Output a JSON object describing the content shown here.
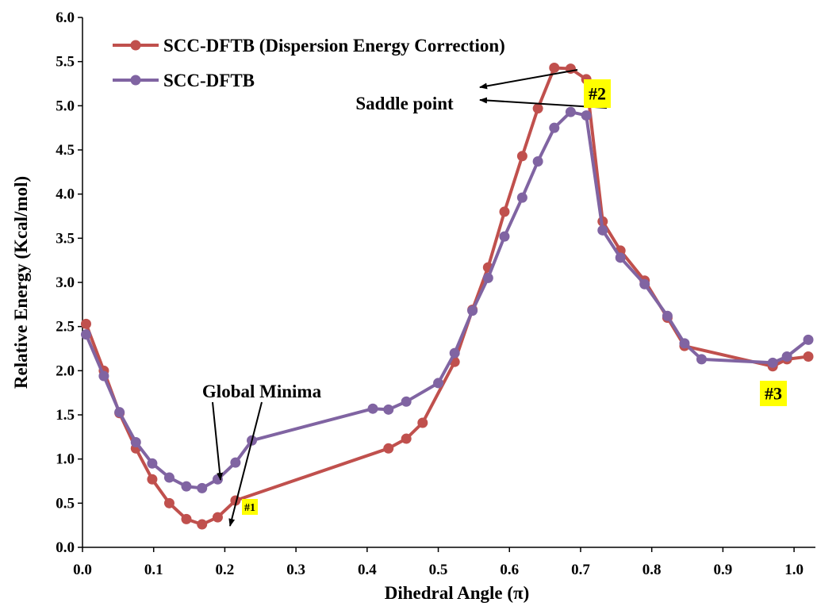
{
  "chart_data": {
    "type": "line",
    "title": "",
    "xlabel": "Dihedral Angle (π)",
    "ylabel": "Relative Energy (Kcal/mol)",
    "xlim": [
      0.0,
      1.03
    ],
    "ylim": [
      0.0,
      6.0
    ],
    "x_ticks": [
      "0.0",
      "0.1",
      "0.2",
      "0.3",
      "0.4",
      "0.5",
      "0.6",
      "0.7",
      "0.8",
      "0.9",
      "1.0"
    ],
    "y_ticks": [
      "0.0",
      "0.5",
      "1.0",
      "1.5",
      "2.0",
      "2.5",
      "3.0",
      "3.5",
      "4.0",
      "4.5",
      "5.0",
      "5.5",
      "6.0"
    ],
    "grid": false,
    "legend_position": "top-left",
    "series": [
      {
        "name": "SCC-DFTB (Dispersion Energy Correction)",
        "color": "#C0504D",
        "points": [
          [
            0.005,
            2.53
          ],
          [
            0.03,
            2.0
          ],
          [
            0.052,
            1.52
          ],
          [
            0.075,
            1.12
          ],
          [
            0.098,
            0.77
          ],
          [
            0.122,
            0.5
          ],
          [
            0.146,
            0.32
          ],
          [
            0.168,
            0.26
          ],
          [
            0.19,
            0.34
          ],
          [
            0.215,
            0.53
          ],
          [
            0.43,
            1.12
          ],
          [
            0.455,
            1.23
          ],
          [
            0.478,
            1.41
          ],
          [
            0.523,
            2.1
          ],
          [
            0.548,
            2.69
          ],
          [
            0.57,
            3.17
          ],
          [
            0.593,
            3.8
          ],
          [
            0.618,
            4.43
          ],
          [
            0.64,
            4.97
          ],
          [
            0.663,
            5.43
          ],
          [
            0.686,
            5.42
          ],
          [
            0.708,
            5.3
          ],
          [
            0.731,
            3.69
          ],
          [
            0.756,
            3.36
          ],
          [
            0.79,
            3.02
          ],
          [
            0.822,
            2.6
          ],
          [
            0.846,
            2.28
          ],
          [
            0.97,
            2.05
          ],
          [
            0.99,
            2.13
          ],
          [
            1.02,
            2.16
          ]
        ]
      },
      {
        "name": "SCC-DFTB",
        "color": "#8064A2",
        "points": [
          [
            0.005,
            2.41
          ],
          [
            0.03,
            1.94
          ],
          [
            0.052,
            1.53
          ],
          [
            0.075,
            1.19
          ],
          [
            0.098,
            0.95
          ],
          [
            0.122,
            0.79
          ],
          [
            0.146,
            0.69
          ],
          [
            0.168,
            0.67
          ],
          [
            0.19,
            0.77
          ],
          [
            0.215,
            0.96
          ],
          [
            0.238,
            1.21
          ],
          [
            0.408,
            1.57
          ],
          [
            0.43,
            1.56
          ],
          [
            0.455,
            1.65
          ],
          [
            0.5,
            1.86
          ],
          [
            0.523,
            2.2
          ],
          [
            0.548,
            2.68
          ],
          [
            0.57,
            3.05
          ],
          [
            0.593,
            3.52
          ],
          [
            0.618,
            3.96
          ],
          [
            0.64,
            4.37
          ],
          [
            0.663,
            4.75
          ],
          [
            0.686,
            4.93
          ],
          [
            0.708,
            4.89
          ],
          [
            0.731,
            3.59
          ],
          [
            0.756,
            3.28
          ],
          [
            0.79,
            2.98
          ],
          [
            0.822,
            2.62
          ],
          [
            0.846,
            2.31
          ],
          [
            0.87,
            2.13
          ],
          [
            0.97,
            2.09
          ],
          [
            0.99,
            2.16
          ],
          [
            1.02,
            2.35
          ]
        ]
      }
    ],
    "annotations": {
      "global_minima": "Global Minima",
      "saddle_point": "Saddle point",
      "tag1": "#1",
      "tag2": "#2",
      "tag3": "#3"
    }
  }
}
